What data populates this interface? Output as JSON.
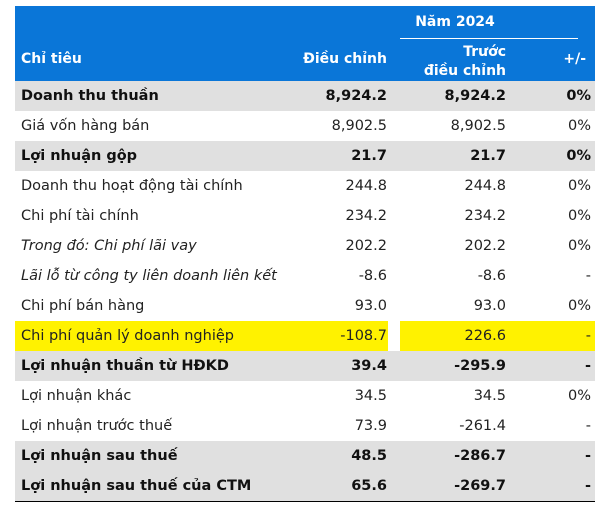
{
  "header": {
    "year": "Năm 2024",
    "col_label": "Chỉ tiêu",
    "col_adjusted": "Điều chỉnh",
    "col_prev_line1": "Trước",
    "col_prev_line2": "điều chỉnh",
    "col_pct": "+/-"
  },
  "rows": [
    {
      "label": "Doanh thu thuần",
      "adjusted": "8,924.2",
      "previous": "8,924.2",
      "pct": "0%"
    },
    {
      "label": "Giá vốn hàng bán",
      "adjusted": "8,902.5",
      "previous": "8,902.5",
      "pct": "0%"
    },
    {
      "label": "Lợi nhuận gộp",
      "adjusted": "21.7",
      "previous": "21.7",
      "pct": "0%"
    },
    {
      "label": "Doanh thu hoạt động tài chính",
      "adjusted": "244.8",
      "previous": "244.8",
      "pct": "0%"
    },
    {
      "label": "Chi phí tài chính",
      "adjusted": "234.2",
      "previous": "234.2",
      "pct": "0%"
    },
    {
      "label": "Trong đó: Chi phí lãi vay",
      "adjusted": "202.2",
      "previous": "202.2",
      "pct": "0%"
    },
    {
      "label": "Lãi lỗ từ công ty liên doanh liên kết",
      "adjusted": "-8.6",
      "previous": "-8.6",
      "pct": "-"
    },
    {
      "label": "Chi phí bán hàng",
      "adjusted": "93.0",
      "previous": "93.0",
      "pct": "0%"
    },
    {
      "label": "Chi phí quản lý doanh nghiệp",
      "adjusted": "-108.7",
      "previous": "226.6",
      "pct": "-"
    },
    {
      "label": "Lợi nhuận thuần từ HĐKD",
      "adjusted": "39.4",
      "previous": "-295.9",
      "pct": "-"
    },
    {
      "label": "Lợi nhuận khác",
      "adjusted": "34.5",
      "previous": "34.5",
      "pct": "0%"
    },
    {
      "label": "Lợi nhuận trước thuế",
      "adjusted": "73.9",
      "previous": "-261.4",
      "pct": "-"
    },
    {
      "label": "Lợi nhuận sau thuế",
      "adjusted": "48.5",
      "previous": "-286.7",
      "pct": "-"
    },
    {
      "label": "Lợi nhuận sau thuế của CTM",
      "adjusted": "65.6",
      "previous": "-269.7",
      "pct": "-"
    }
  ],
  "colors": {
    "header_bg": "#0a76d8",
    "highlight": "#fff200",
    "gray_row": "#e0e0e0"
  }
}
